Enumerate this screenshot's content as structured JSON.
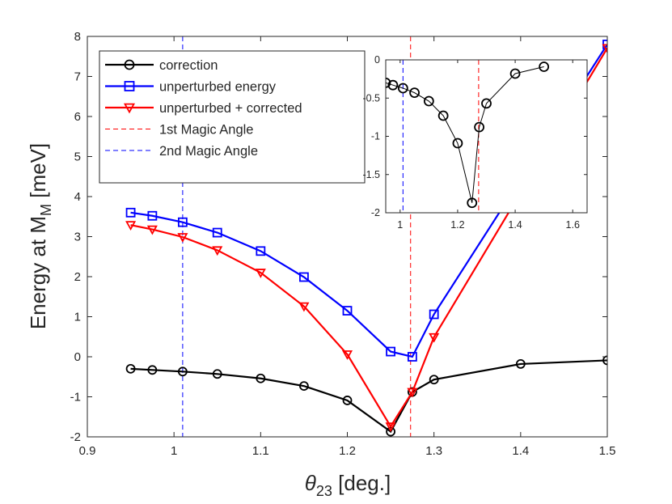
{
  "chart_data": [
    {
      "type": "line",
      "name": "main",
      "title": "",
      "xlabel": {
        "symbol": "θ",
        "sub": "23",
        "rest": " [deg.]"
      },
      "ylabel": {
        "main": "Energy at M",
        "sub": "M",
        "rest": " [meV]"
      },
      "xlim": [
        0.9,
        1.5
      ],
      "ylim": [
        -2,
        8
      ],
      "xticks": [
        0.9,
        1,
        1.1,
        1.2,
        1.3,
        1.4,
        1.5
      ],
      "xtick_labels": [
        "0.9",
        "1",
        "1.1",
        "1.2",
        "1.3",
        "1.4",
        "1.5"
      ],
      "yticks": [
        -2,
        -1,
        0,
        1,
        2,
        3,
        4,
        5,
        6,
        7,
        8
      ],
      "ytick_labels": [
        "-2",
        "-1",
        "0",
        "1",
        "2",
        "3",
        "4",
        "5",
        "6",
        "7",
        "8"
      ],
      "legend_position": "top-left",
      "series": [
        {
          "name": "correction",
          "color": "#000000",
          "marker": "circle",
          "x": [
            0.95,
            0.975,
            1.01,
            1.05,
            1.1,
            1.15,
            1.2,
            1.25,
            1.275,
            1.3,
            1.4,
            1.5
          ],
          "y": [
            -0.3,
            -0.33,
            -0.37,
            -0.43,
            -0.54,
            -0.73,
            -1.09,
            -1.87,
            -0.88,
            -0.57,
            -0.18,
            -0.09
          ]
        },
        {
          "name": "unperturbed energy",
          "color": "#0000ff",
          "marker": "square",
          "x": [
            0.95,
            0.975,
            1.01,
            1.05,
            1.1,
            1.15,
            1.2,
            1.25,
            1.275,
            1.3,
            1.5
          ],
          "y": [
            3.6,
            3.52,
            3.36,
            3.1,
            2.64,
            1.99,
            1.15,
            0.13,
            0.0,
            1.06,
            7.8
          ]
        },
        {
          "name": "unperturbed + corrected",
          "color": "#ff0000",
          "marker": "triangle-down",
          "x": [
            0.95,
            0.975,
            1.01,
            1.05,
            1.1,
            1.15,
            1.2,
            1.25,
            1.275,
            1.3,
            1.5
          ],
          "y": [
            3.29,
            3.18,
            2.99,
            2.66,
            2.1,
            1.26,
            0.06,
            -1.74,
            -0.88,
            0.49,
            7.71
          ]
        }
      ],
      "vlines": [
        {
          "name": "1st Magic Angle",
          "x": 1.273,
          "color": "#ff0000"
        },
        {
          "name": "2nd Magic Angle",
          "x": 1.01,
          "color": "#0000ff"
        }
      ]
    },
    {
      "type": "line",
      "name": "inset",
      "xlim": [
        0.95,
        1.65
      ],
      "ylim": [
        -2,
        0
      ],
      "xticks": [
        1,
        1.2,
        1.4,
        1.6
      ],
      "xtick_labels": [
        "1",
        "1.2",
        "1.4",
        "1.6"
      ],
      "yticks": [
        -2,
        -1.5,
        -1,
        -0.5,
        0
      ],
      "ytick_labels": [
        "-2",
        "-1.5",
        "-1",
        "-0.5",
        "0"
      ],
      "series": [
        {
          "name": "correction",
          "color": "#000000",
          "marker": "circle",
          "x": [
            0.95,
            0.975,
            1.01,
            1.05,
            1.1,
            1.15,
            1.2,
            1.25,
            1.275,
            1.3,
            1.4,
            1.5
          ],
          "y": [
            -0.3,
            -0.33,
            -0.37,
            -0.43,
            -0.54,
            -0.73,
            -1.09,
            -1.87,
            -0.88,
            -0.57,
            -0.18,
            -0.09
          ]
        }
      ],
      "vlines": [
        {
          "name": "1st Magic Angle",
          "x": 1.273,
          "color": "#ff0000"
        },
        {
          "name": "2nd Magic Angle",
          "x": 1.01,
          "color": "#0000ff"
        }
      ]
    }
  ],
  "legend": {
    "items": [
      {
        "label": "correction",
        "color": "#000000",
        "style": "solid",
        "marker": "circle"
      },
      {
        "label": "unperturbed energy",
        "color": "#0000ff",
        "style": "solid",
        "marker": "square"
      },
      {
        "label": "unperturbed + corrected",
        "color": "#ff0000",
        "style": "solid",
        "marker": "triangle-down"
      },
      {
        "label": "1st Magic Angle",
        "color": "#ff0000",
        "style": "dashed",
        "marker": "none"
      },
      {
        "label": "2nd Magic Angle",
        "color": "#0000ff",
        "style": "dashed",
        "marker": "none"
      }
    ]
  }
}
